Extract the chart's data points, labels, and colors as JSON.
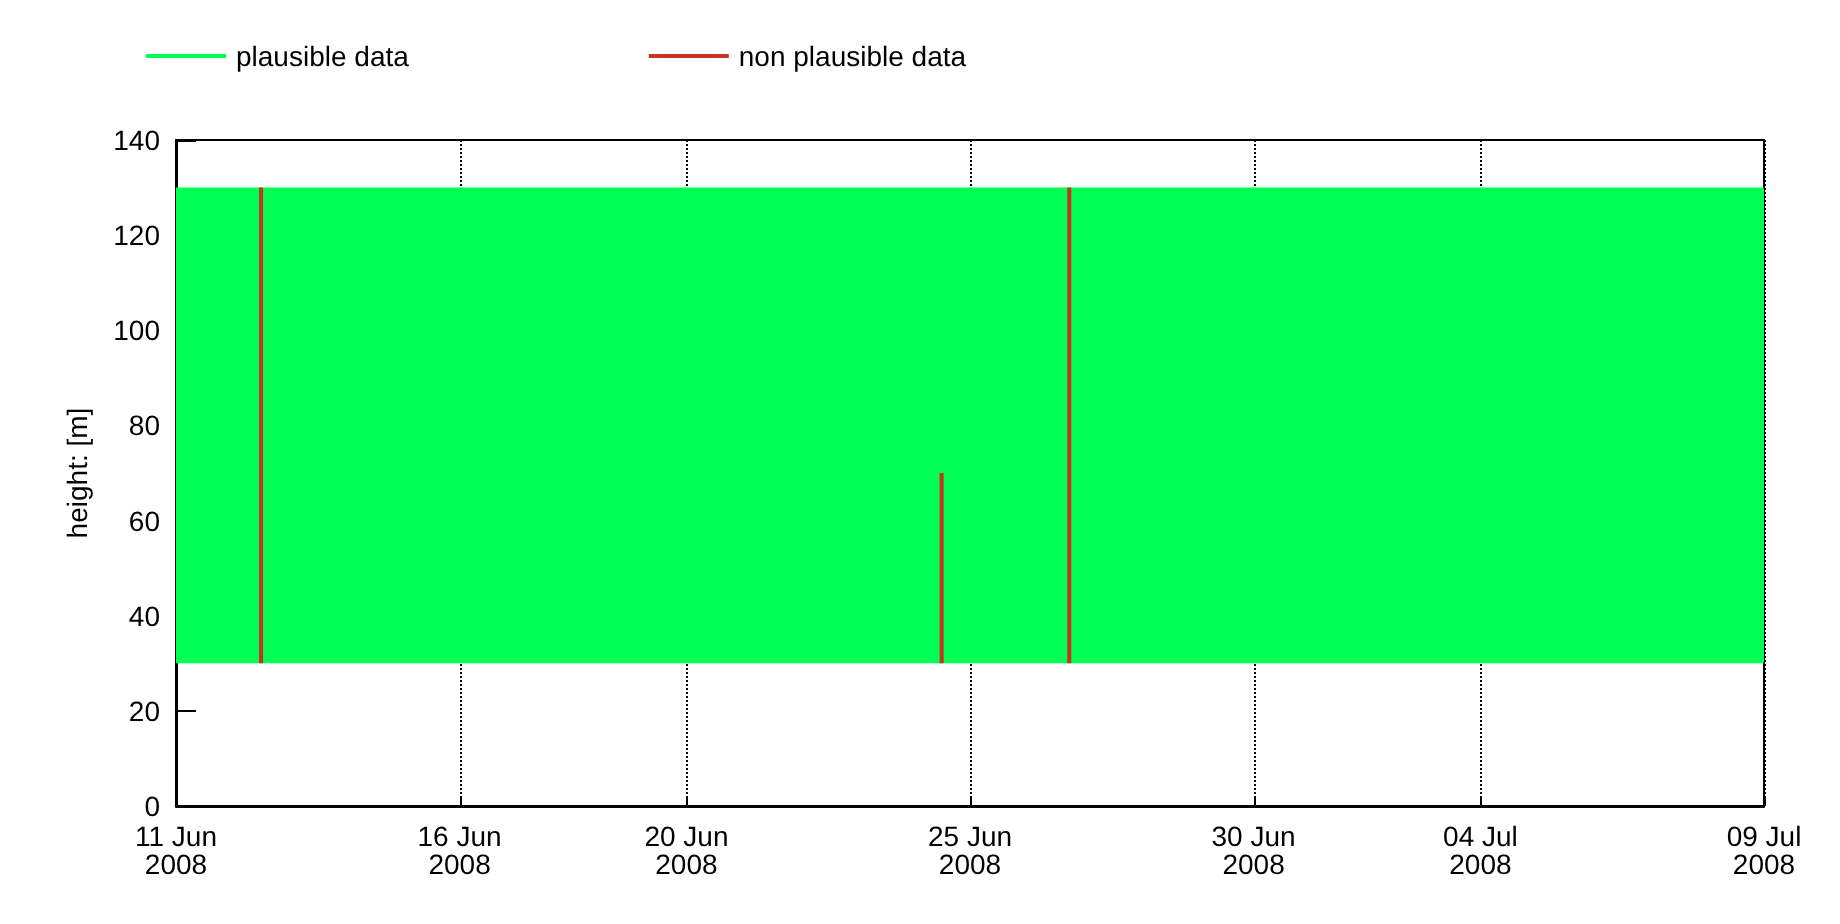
{
  "chart_data": {
    "type": "bar",
    "ylabel": "height: [m]",
    "legend": "top left",
    "grid": "x",
    "xlim": [
      "2008-06-11",
      "2008-07-09"
    ],
    "xticks": [
      {
        "value": "2008-06-11",
        "label": "11 Jun 2008"
      },
      {
        "value": "2008-06-16",
        "label": "16 Jun 2008"
      },
      {
        "value": "2008-06-20",
        "label": "20 Jun 2008"
      },
      {
        "value": "2008-06-25",
        "label": "25 Jun 2008"
      },
      {
        "value": "2008-06-30",
        "label": "30 Jun 2008"
      },
      {
        "value": "2008-07-04",
        "label": "04 Jul 2008"
      },
      {
        "value": "2008-07-09",
        "label": "09 Jul 2008"
      }
    ],
    "ylim": [
      0,
      140
    ],
    "yticks": [
      0,
      20,
      40,
      60,
      80,
      100,
      120,
      140
    ],
    "bands": [
      {
        "axis": "y",
        "from": 30,
        "to": 130,
        "label": "plausible data",
        "color": "#00ff55"
      }
    ],
    "series": [
      {
        "name": "non plausible data",
        "color": "#c8321e",
        "x": [
          "2008-06-12T12:00",
          "2008-06-24T12:00",
          "2008-06-26T18:00"
        ],
        "base": [
          30,
          30,
          30
        ],
        "values": [
          100,
          40,
          100
        ]
      }
    ]
  }
}
